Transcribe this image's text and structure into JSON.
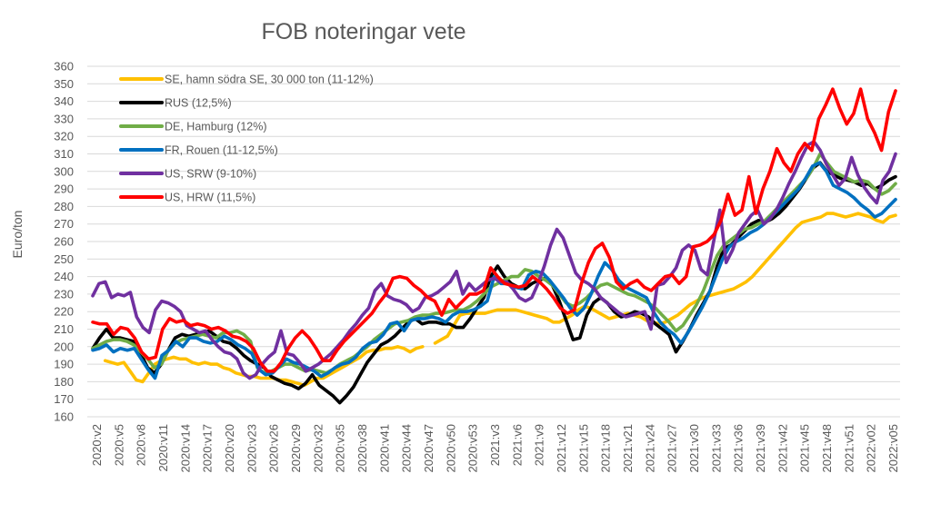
{
  "chart_data": {
    "type": "line",
    "title": "FOB noteringar vete",
    "ylabel": "Euro/ton",
    "xlabel": "",
    "ylim": [
      160,
      360
    ],
    "yticks": [
      160,
      170,
      180,
      190,
      200,
      210,
      220,
      230,
      240,
      250,
      260,
      270,
      280,
      290,
      300,
      310,
      320,
      330,
      340,
      350,
      360
    ],
    "grid": "horizontal",
    "legend_position": "top-left",
    "x_tick_labels": [
      "2020:v2",
      "2020:v5",
      "2020:v8",
      "2020:v11",
      "2020:v14",
      "2020:v17",
      "2020:v20",
      "2020:v23",
      "2020:v26",
      "2020:v29",
      "2020:v32",
      "2020:v35",
      "2020:v38",
      "2020:v41",
      "2020:v44",
      "2020:v47",
      "2020:v50",
      "2020:v53",
      "2021:v3",
      "2021:v6",
      "2021:v9",
      "2021:v12",
      "2021:v15",
      "2021:v18",
      "2021:v21",
      "2021:v24",
      "2021:v27",
      "2021:v30",
      "2021:v33",
      "2021:v36",
      "2021:v39",
      "2021:v42",
      "2021:v45",
      "2021:v48",
      "2021:v51",
      "2022:v02",
      "2022:v05"
    ],
    "series": [
      {
        "name": "SE, hamn södra SE, 30 000 ton (11-12%)",
        "color": "#FFC000",
        "values": [
          null,
          null,
          192,
          191,
          190,
          191,
          186,
          181,
          180,
          185,
          190,
          192,
          193,
          194,
          193,
          193,
          191,
          190,
          191,
          190,
          190,
          188,
          187,
          185,
          184,
          183,
          183,
          182,
          182,
          182,
          181,
          181,
          180,
          179,
          178,
          180,
          182,
          182,
          184,
          186,
          188,
          190,
          192,
          194,
          197,
          198,
          198,
          199,
          199,
          200,
          199,
          197,
          199,
          200,
          null,
          202,
          204,
          206,
          212,
          218,
          219,
          219,
          219,
          219,
          220,
          221,
          221,
          221,
          221,
          220,
          219,
          218,
          217,
          216,
          214,
          214,
          216,
          218,
          221,
          223,
          222,
          220,
          218,
          216,
          217,
          218,
          219,
          218,
          217,
          215,
          214,
          213,
          214,
          216,
          218,
          221,
          224,
          226,
          228,
          229,
          230,
          231,
          232,
          233,
          235,
          237,
          240,
          244,
          248,
          252,
          256,
          260,
          264,
          268,
          271,
          272,
          273,
          274,
          276,
          276,
          275,
          274,
          275,
          276,
          275,
          274,
          272,
          271,
          274,
          275
        ]
      },
      {
        "name": "RUS (12,5%)",
        "color": "#000000",
        "values": [
          199,
          205,
          210,
          205,
          205,
          204,
          203,
          196,
          188,
          185,
          190,
          198,
          205,
          207,
          206,
          207,
          208,
          209,
          206,
          203,
          202,
          199,
          195,
          192,
          190,
          188,
          183,
          181,
          179,
          178,
          176,
          179,
          184,
          178,
          175,
          172,
          168,
          172,
          177,
          184,
          191,
          196,
          201,
          203,
          206,
          210,
          214,
          216,
          213,
          214,
          214,
          213,
          213,
          211,
          211,
          216,
          222,
          228,
          240,
          246,
          240,
          236,
          234,
          233,
          236,
          238,
          239,
          235,
          226,
          215,
          204,
          205,
          218,
          225,
          228,
          225,
          220,
          217,
          218,
          220,
          219,
          217,
          213,
          210,
          207,
          197,
          203,
          210,
          218,
          225,
          232,
          246,
          256,
          258,
          262,
          266,
          270,
          272,
          271,
          273,
          276,
          280,
          285,
          290,
          296,
          302,
          305,
          300,
          298,
          296,
          295,
          294,
          292,
          293,
          290,
          292,
          295,
          297
        ]
      },
      {
        "name": "DE, Hamburg (12%)",
        "color": "#70AD47",
        "values": [
          199,
          201,
          203,
          204,
          204,
          203,
          201,
          197,
          193,
          188,
          190,
          198,
          202,
          204,
          205,
          206,
          207,
          206,
          205,
          208,
          208,
          209,
          207,
          203,
          188,
          185,
          186,
          188,
          190,
          190,
          188,
          186,
          187,
          186,
          185,
          187,
          190,
          192,
          194,
          197,
          200,
          204,
          207,
          210,
          213,
          214,
          215,
          217,
          218,
          218,
          219,
          219,
          220,
          221,
          221,
          223,
          226,
          230,
          234,
          236,
          238,
          240,
          240,
          244,
          243,
          240,
          238,
          235,
          230,
          225,
          223,
          225,
          228,
          232,
          235,
          236,
          234,
          232,
          230,
          229,
          227,
          225,
          222,
          218,
          214,
          209,
          212,
          218,
          224,
          232,
          242,
          252,
          258,
          261,
          264,
          267,
          268,
          270,
          272,
          276,
          280,
          284,
          288,
          292,
          296,
          302,
          310,
          305,
          300,
          298,
          296,
          294,
          295,
          294,
          290,
          287,
          289,
          293
        ]
      },
      {
        "name": "FR, Rouen (11-12,5%)",
        "color": "#0070C0",
        "values": [
          198,
          199,
          201,
          197,
          199,
          198,
          199,
          193,
          187,
          182,
          195,
          198,
          203,
          200,
          205,
          205,
          203,
          202,
          203,
          206,
          204,
          201,
          199,
          196,
          187,
          184,
          185,
          189,
          193,
          191,
          190,
          188,
          186,
          183,
          185,
          188,
          190,
          191,
          194,
          199,
          202,
          203,
          207,
          213,
          214,
          209,
          215,
          216,
          216,
          217,
          216,
          214,
          218,
          220,
          220,
          221,
          223,
          226,
          240,
          236,
          236,
          234,
          233,
          241,
          243,
          242,
          238,
          233,
          228,
          222,
          218,
          222,
          230,
          240,
          248,
          244,
          238,
          234,
          232,
          230,
          228,
          220,
          214,
          210,
          207,
          202,
          208,
          215,
          222,
          230,
          240,
          250,
          257,
          260,
          262,
          265,
          267,
          270,
          274,
          278,
          282,
          286,
          290,
          296,
          303,
          305,
          300,
          292,
          290,
          288,
          285,
          281,
          278,
          274,
          276,
          280,
          284
        ]
      },
      {
        "name": "US, SRW (9-10%)",
        "color": "#7030A0",
        "values": [
          229,
          236,
          237,
          228,
          230,
          229,
          231,
          217,
          211,
          208,
          221,
          226,
          225,
          223,
          220,
          212,
          210,
          208,
          209,
          204,
          200,
          197,
          196,
          193,
          185,
          182,
          184,
          190,
          194,
          197,
          209,
          196,
          195,
          191,
          186,
          188,
          190,
          193,
          196,
          200,
          204,
          209,
          213,
          218,
          222,
          232,
          236,
          229,
          227,
          226,
          224,
          220,
          222,
          228,
          229,
          231,
          234,
          237,
          243,
          230,
          236,
          232,
          235,
          238,
          239,
          237,
          237,
          233,
          228,
          226,
          228,
          236,
          246,
          258,
          267,
          262,
          252,
          242,
          238,
          236,
          233,
          228,
          225,
          222,
          219,
          217,
          218,
          219,
          220,
          210,
          235,
          236,
          240,
          245,
          255,
          258,
          255,
          244,
          241,
          260,
          278,
          248,
          255,
          265,
          270,
          275,
          278,
          270,
          273,
          278,
          285,
          293,
          300,
          308,
          315,
          317,
          312,
          304,
          298,
          292,
          296,
          308,
          298,
          291,
          286,
          282,
          295,
          300,
          310
        ]
      },
      {
        "name": "US, HRW (11,5%)",
        "color": "#FF0000",
        "values": [
          214,
          213,
          213,
          207,
          211,
          210,
          205,
          197,
          193,
          194,
          210,
          216,
          214,
          215,
          212,
          213,
          212,
          210,
          211,
          209,
          206,
          205,
          203,
          199,
          191,
          186,
          186,
          191,
          199,
          205,
          209,
          205,
          199,
          192,
          192,
          198,
          203,
          207,
          211,
          215,
          219,
          225,
          230,
          239,
          240,
          239,
          235,
          232,
          228,
          226,
          218,
          227,
          222,
          226,
          230,
          230,
          232,
          245,
          240,
          236,
          235,
          234,
          235,
          240,
          237,
          233,
          228,
          222,
          219,
          221,
          236,
          248,
          256,
          259,
          251,
          237,
          233,
          236,
          238,
          234,
          232,
          236,
          240,
          241,
          236,
          240,
          257,
          258,
          260,
          264,
          272,
          287,
          275,
          278,
          297,
          276,
          290,
          300,
          313,
          305,
          300,
          310,
          316,
          312,
          330,
          338,
          347,
          336,
          327,
          333,
          347,
          330,
          322,
          312,
          334,
          346
        ]
      }
    ]
  }
}
